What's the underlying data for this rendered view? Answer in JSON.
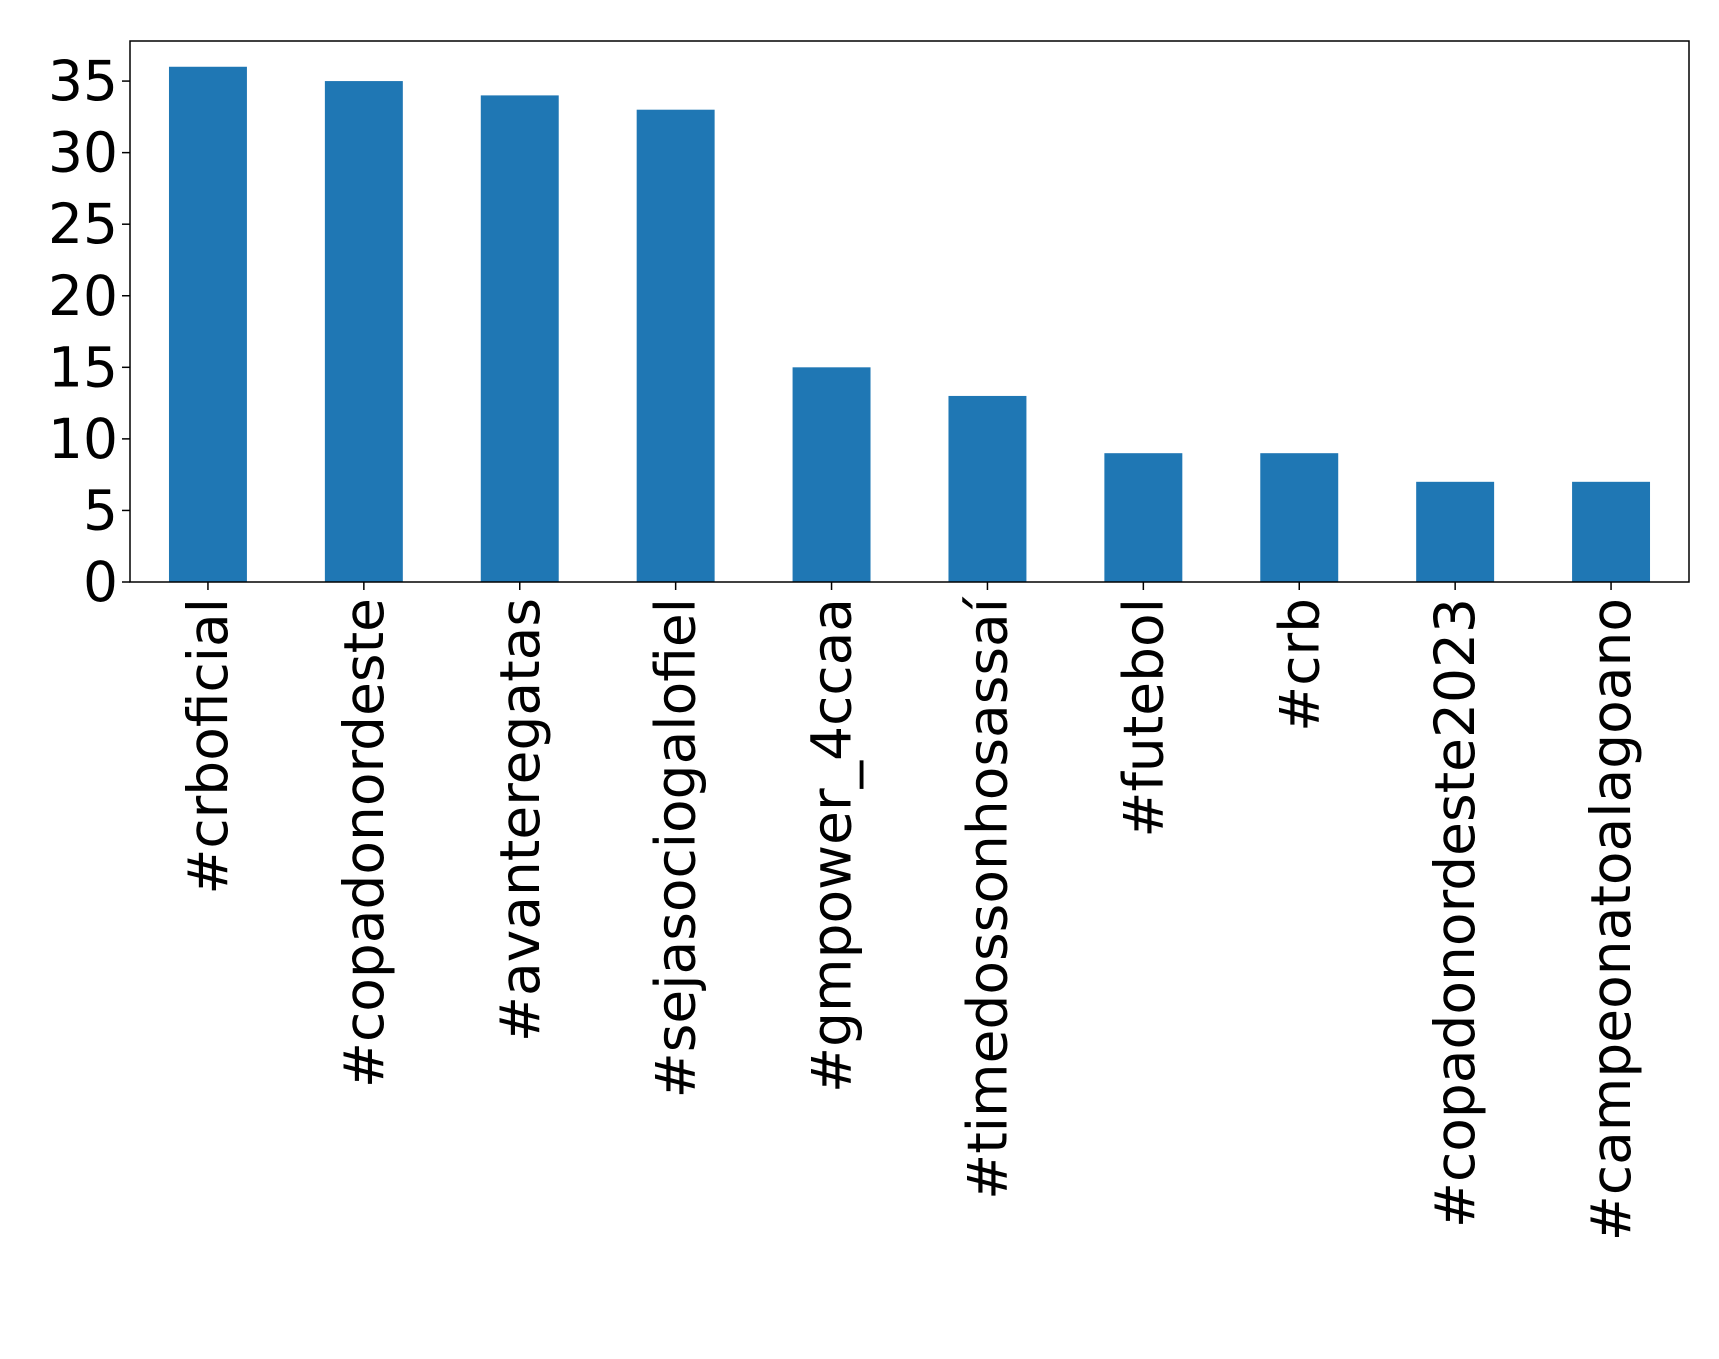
{
  "chart_data": {
    "type": "bar",
    "title": "",
    "xlabel": "",
    "ylabel": "",
    "categories": [
      "#crboficial",
      "#copadonordeste",
      "#avanteregatas",
      "#sejasociogalofiel",
      "#gmpower_4ccaa",
      "#timedossonhosassaí",
      "#futebol",
      "#crb",
      "#copadonordeste2023",
      "#campeonatoalagoano"
    ],
    "values": [
      36,
      35,
      34,
      33,
      15,
      13,
      9,
      9,
      7,
      7
    ],
    "ylim": [
      0,
      37.8
    ],
    "yticks": [
      0,
      5,
      10,
      15,
      20,
      25,
      30,
      35
    ],
    "bar_color": "#1f77b4",
    "grid": false,
    "legend": "none"
  }
}
